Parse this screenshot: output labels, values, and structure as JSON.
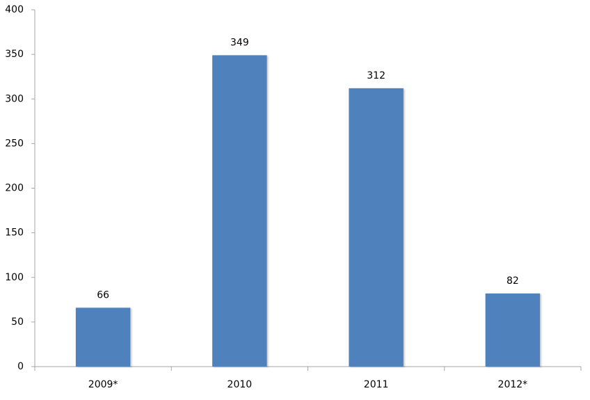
{
  "chart_data": {
    "type": "bar",
    "categories": [
      "2009*",
      "2010",
      "2011",
      "2012*"
    ],
    "values": [
      66,
      349,
      312,
      82
    ],
    "color": "#4f81bd",
    "ylim": [
      0,
      400
    ],
    "yticks": [
      0,
      50,
      100,
      150,
      200,
      250,
      300,
      350,
      400
    ],
    "grid": false
  }
}
